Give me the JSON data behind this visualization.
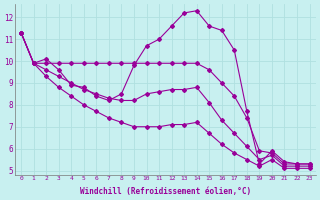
{
  "title": "",
  "xlabel": "Windchill (Refroidissement éolien,°C)",
  "background_color": "#c8f0f0",
  "line_color": "#990099",
  "grid_color": "#b0e0e0",
  "xlim": [
    -0.5,
    23.5
  ],
  "ylim": [
    4.8,
    12.6
  ],
  "yticks": [
    5,
    6,
    7,
    8,
    9,
    10,
    11,
    12
  ],
  "xticks": [
    0,
    1,
    2,
    3,
    4,
    5,
    6,
    7,
    8,
    9,
    10,
    11,
    12,
    13,
    14,
    15,
    16,
    17,
    18,
    19,
    20,
    21,
    22,
    23
  ],
  "series": [
    {
      "x": [
        0,
        1,
        2,
        3,
        4,
        5,
        6,
        7,
        8,
        9,
        10,
        11,
        12,
        13,
        14,
        15,
        16,
        17,
        18,
        19,
        20,
        21,
        22,
        23
      ],
      "y": [
        11.3,
        9.9,
        10.1,
        9.6,
        8.9,
        8.8,
        8.4,
        8.2,
        8.5,
        9.8,
        10.7,
        11.0,
        11.6,
        12.2,
        12.3,
        11.6,
        11.4,
        10.5,
        7.7,
        5.3,
        5.9,
        5.4,
        5.3,
        5.3
      ]
    },
    {
      "x": [
        0,
        1,
        2,
        3,
        4,
        5,
        6,
        7,
        8,
        9,
        10,
        11,
        12,
        13,
        14,
        15,
        16,
        17,
        18,
        19,
        20,
        21,
        22,
        23
      ],
      "y": [
        11.3,
        9.9,
        9.9,
        9.9,
        9.9,
        9.9,
        9.9,
        9.9,
        9.9,
        9.9,
        9.9,
        9.9,
        9.9,
        9.9,
        9.9,
        9.6,
        9.0,
        8.4,
        7.4,
        5.9,
        5.8,
        5.3,
        5.3,
        5.3
      ]
    },
    {
      "x": [
        0,
        1,
        2,
        3,
        4,
        5,
        6,
        7,
        8,
        9,
        10,
        11,
        12,
        13,
        14,
        15,
        16,
        17,
        18,
        19,
        20,
        21,
        22,
        23
      ],
      "y": [
        11.3,
        9.9,
        9.6,
        9.3,
        9.0,
        8.7,
        8.5,
        8.3,
        8.2,
        8.2,
        8.5,
        8.6,
        8.7,
        8.7,
        8.8,
        8.1,
        7.3,
        6.7,
        6.1,
        5.5,
        5.7,
        5.2,
        5.2,
        5.2
      ]
    },
    {
      "x": [
        0,
        1,
        2,
        3,
        4,
        5,
        6,
        7,
        8,
        9,
        10,
        11,
        12,
        13,
        14,
        15,
        16,
        17,
        18,
        19,
        20,
        21,
        22,
        23
      ],
      "y": [
        11.3,
        9.9,
        9.3,
        8.8,
        8.4,
        8.0,
        7.7,
        7.4,
        7.2,
        7.0,
        7.0,
        7.0,
        7.1,
        7.1,
        7.2,
        6.7,
        6.2,
        5.8,
        5.5,
        5.2,
        5.5,
        5.1,
        5.1,
        5.1
      ]
    }
  ]
}
